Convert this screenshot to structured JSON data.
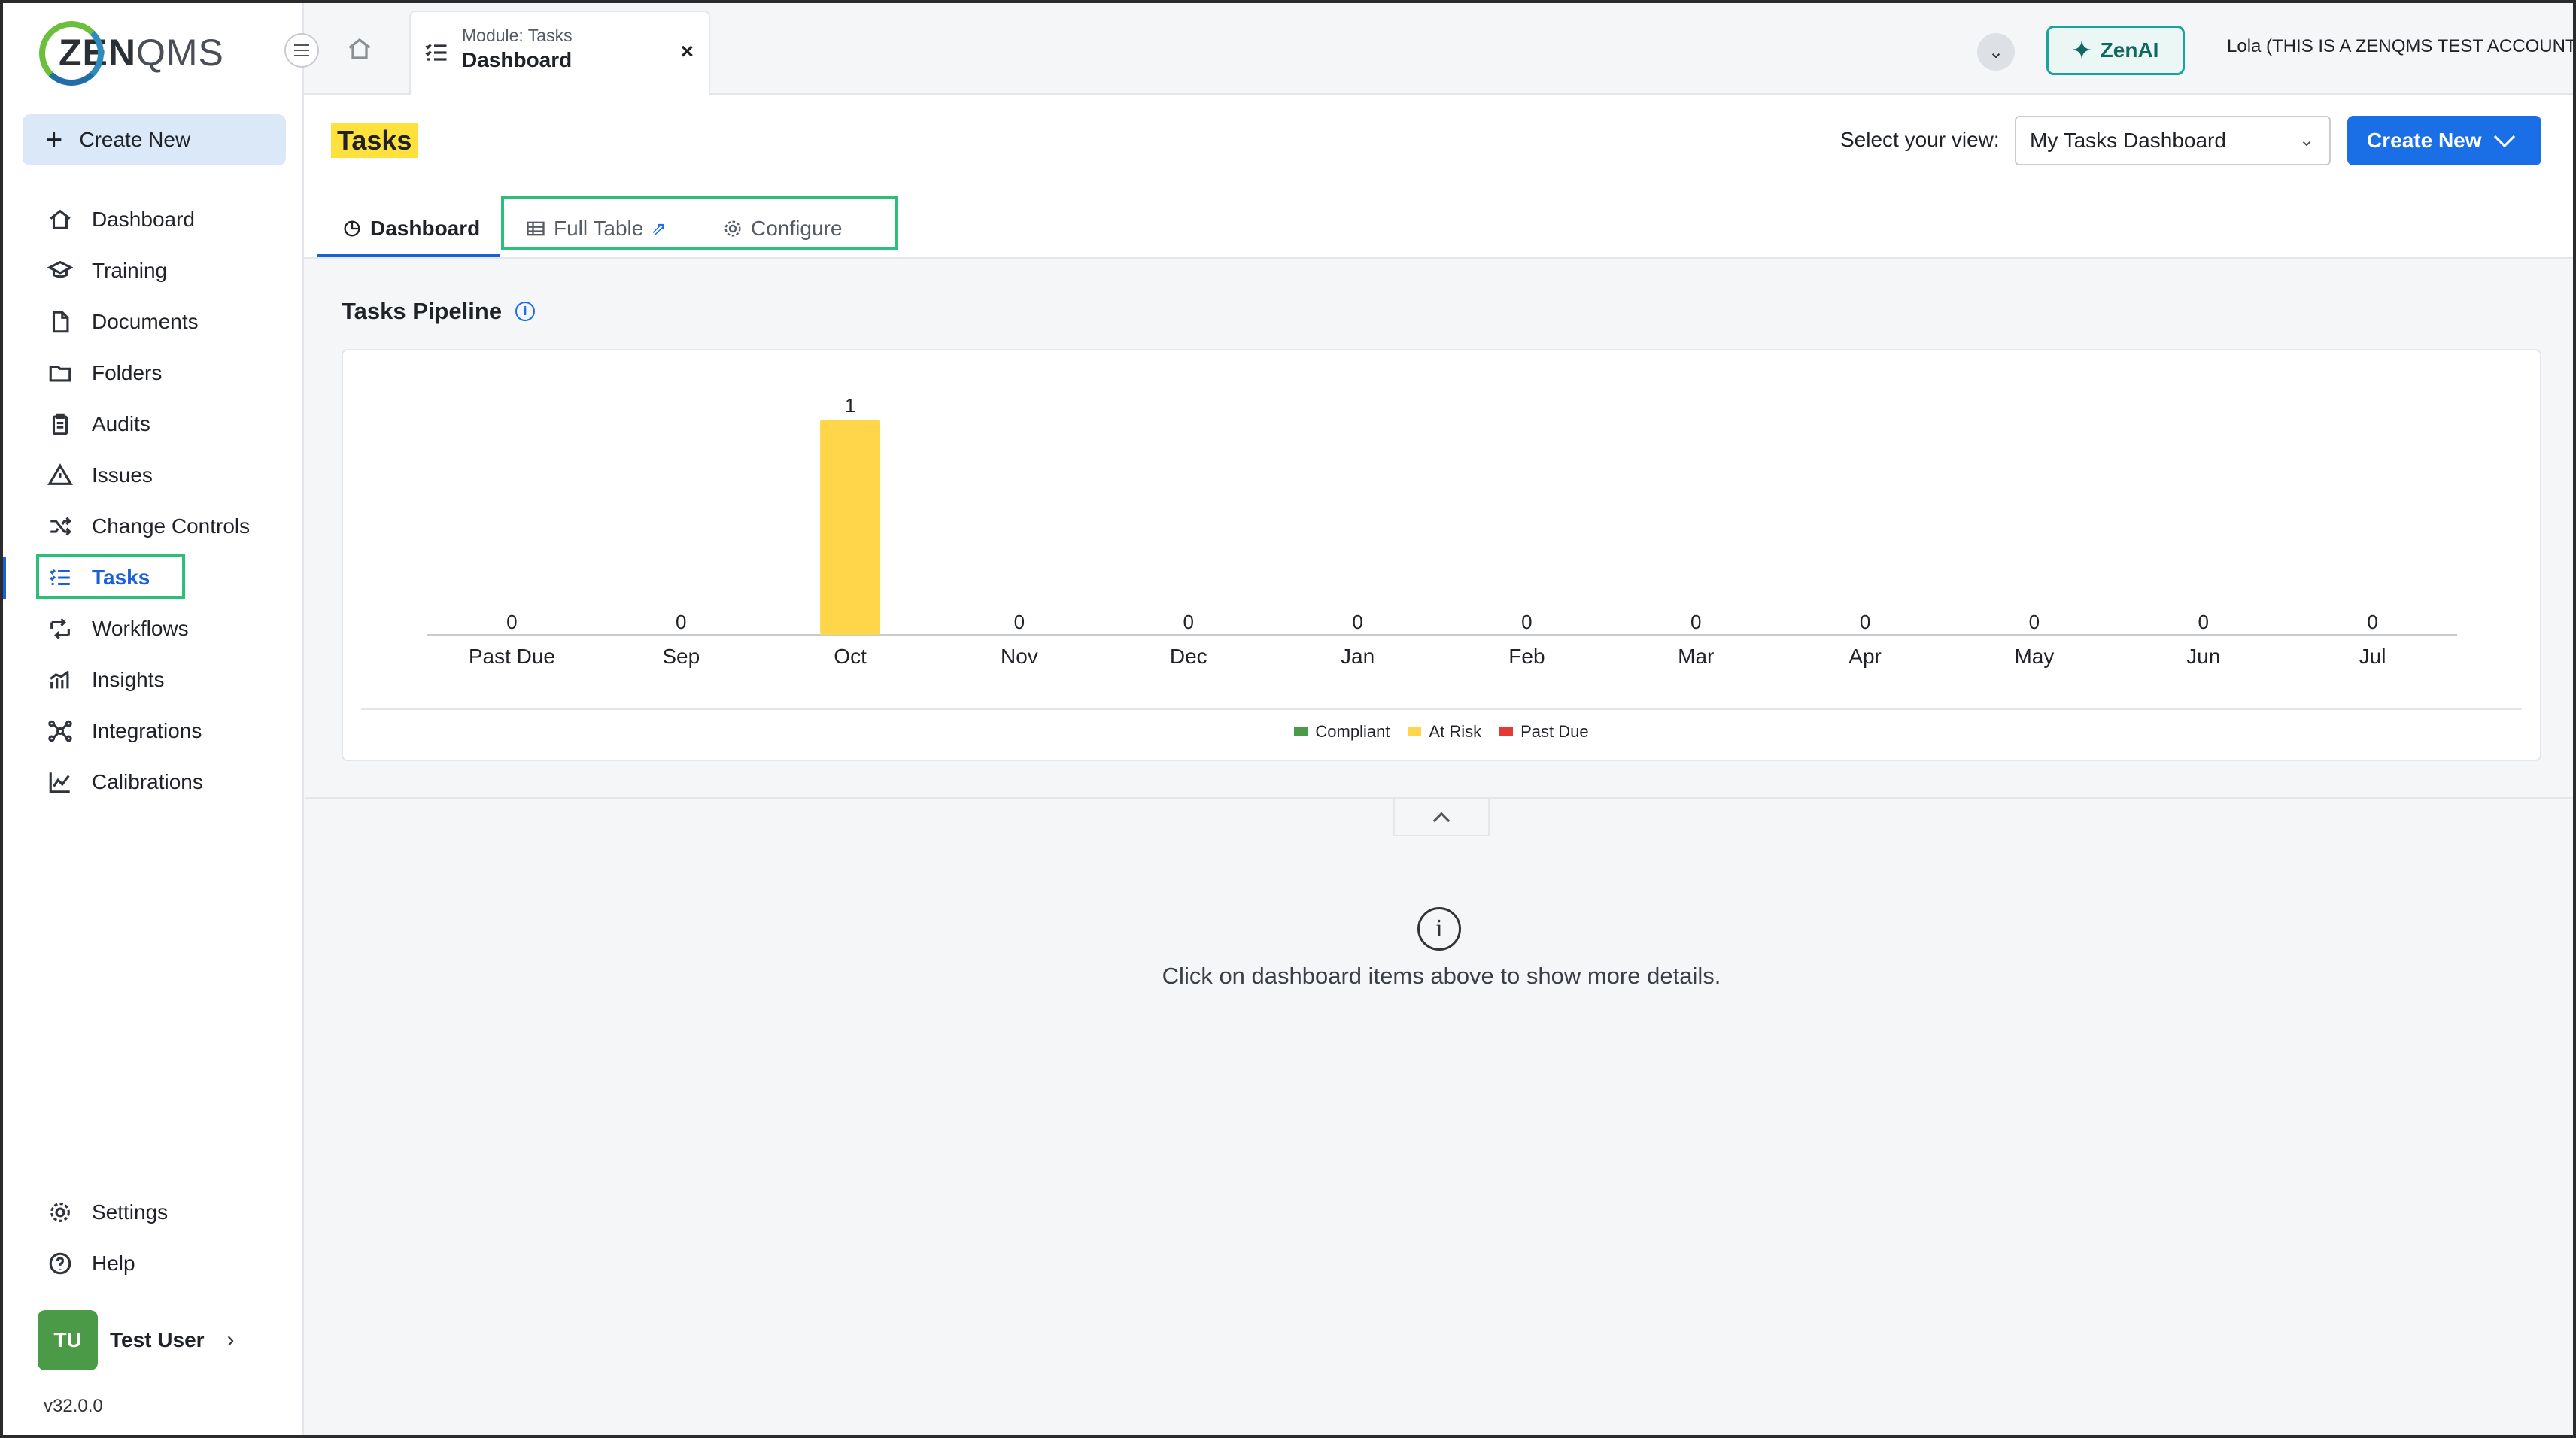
{
  "app": {
    "logo_zen": "ZEN",
    "logo_qms": "QMS"
  },
  "sidebar": {
    "create_new_label": "Create New",
    "items": [
      {
        "label": "Dashboard",
        "icon": "home-icon"
      },
      {
        "label": "Training",
        "icon": "graduation-cap-icon"
      },
      {
        "label": "Documents",
        "icon": "document-icon"
      },
      {
        "label": "Folders",
        "icon": "folder-icon"
      },
      {
        "label": "Audits",
        "icon": "clipboard-icon"
      },
      {
        "label": "Issues",
        "icon": "warning-icon"
      },
      {
        "label": "Change Controls",
        "icon": "shuffle-icon"
      },
      {
        "label": "Tasks",
        "icon": "task-list-icon",
        "active": true
      },
      {
        "label": "Workflows",
        "icon": "workflow-icon"
      },
      {
        "label": "Insights",
        "icon": "bar-chart-icon"
      },
      {
        "label": "Integrations",
        "icon": "integrations-icon"
      },
      {
        "label": "Calibrations",
        "icon": "line-chart-icon"
      }
    ],
    "bottom_items": [
      {
        "label": "Settings",
        "icon": "gear-icon"
      },
      {
        "label": "Help",
        "icon": "help-icon"
      }
    ],
    "user": {
      "initials": "TU",
      "name": "Test User"
    },
    "version": "v32.0.0"
  },
  "topbar": {
    "tab_sub": "Module: Tasks",
    "tab_main": "Dashboard",
    "zenai_label": "ZenAI",
    "account": "Lola (THIS IS A ZENQMS TEST ACCOUNT)"
  },
  "page": {
    "title": "Tasks",
    "view_label": "Select your view:",
    "view_selected": "My Tasks Dashboard",
    "create_new_label": "Create New",
    "tabs": [
      "Dashboard",
      "Full Table",
      "Configure"
    ]
  },
  "pipeline": {
    "title": "Tasks Pipeline",
    "empty_message": "Click on dashboard items above to show more details."
  },
  "colors": {
    "accent": "#1a6ee6",
    "compliant": "#4a9a48",
    "at_risk": "#ffd54a",
    "past_due": "#e53935"
  },
  "chart_data": {
    "type": "bar",
    "categories": [
      "Past Due",
      "Sep",
      "Oct",
      "Nov",
      "Dec",
      "Jan",
      "Feb",
      "Mar",
      "Apr",
      "May",
      "Jun",
      "Jul"
    ],
    "series": [
      {
        "name": "Compliant",
        "color": "#4a9a48",
        "values": [
          0,
          0,
          0,
          0,
          0,
          0,
          0,
          0,
          0,
          0,
          0,
          0
        ]
      },
      {
        "name": "At Risk",
        "color": "#ffd54a",
        "values": [
          0,
          0,
          1,
          0,
          0,
          0,
          0,
          0,
          0,
          0,
          0,
          0
        ]
      },
      {
        "name": "Past Due",
        "color": "#e53935",
        "values": [
          0,
          0,
          0,
          0,
          0,
          0,
          0,
          0,
          0,
          0,
          0,
          0
        ]
      }
    ],
    "totals": [
      0,
      0,
      1,
      0,
      0,
      0,
      0,
      0,
      0,
      0,
      0,
      0
    ],
    "legend_position": "bottom",
    "grid": false
  }
}
